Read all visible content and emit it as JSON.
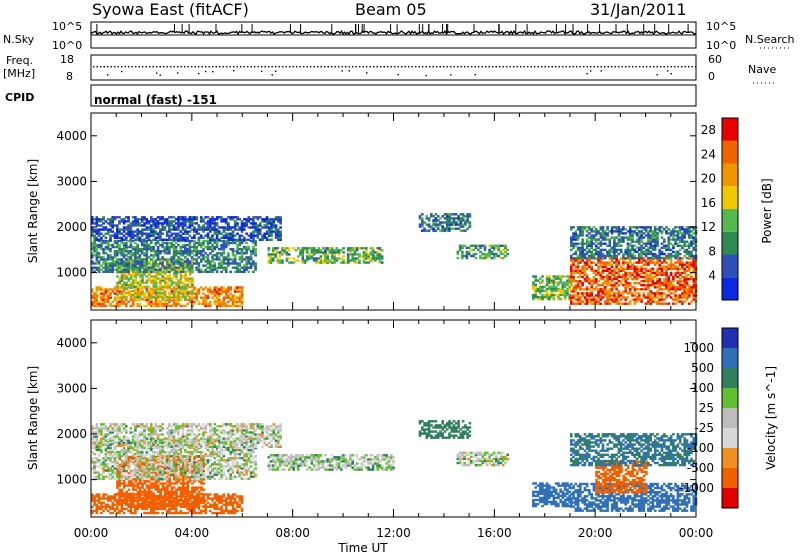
{
  "header": {
    "station": "Syowa East (fitACF)",
    "beam": "Beam 05",
    "date": "31/Jan/2011"
  },
  "status_panels": {
    "nsky_label": "N.Sky",
    "nsky_top": "10^5",
    "nsky_bottom": "10^0",
    "nsearch_label": "N.Search",
    "nsearch_top": "10^5",
    "nsearch_bottom": "10^0",
    "freq_label_1": "Freq.",
    "freq_label_2": "[MHz]",
    "freq_top": "18",
    "freq_bottom": "8",
    "nave_label": "Nave",
    "nave_top": "60",
    "nave_bottom": "0",
    "cpid_label": "CPID",
    "cpid_value": "normal (fast) -151"
  },
  "colors": {
    "power": [
      "#0c28e0",
      "#2e50b8",
      "#2e8c50",
      "#55b850",
      "#f0c800",
      "#f09600",
      "#f06400",
      "#e60000"
    ],
    "velocity": [
      "#2030b0",
      "#3070b8",
      "#308060",
      "#60c030",
      "#bdbdbd",
      "#d8d8d8",
      "#f09020",
      "#f06000",
      "#e00000"
    ]
  },
  "chart_data": [
    {
      "type": "heatmap",
      "title": "Power",
      "xlabel": "Time UT",
      "ylabel": "Slant Range [km]",
      "xlim": [
        "00:00",
        "00:00"
      ],
      "x_ticks": [
        "00:00",
        "04:00",
        "08:00",
        "12:00",
        "16:00",
        "20:00",
        "00:00"
      ],
      "ylim": [
        180,
        4500
      ],
      "y_ticks": [
        1000,
        2000,
        3000,
        4000
      ],
      "colorbar": {
        "label": "Power [dB]",
        "ticks": [
          4,
          8,
          12,
          16,
          20,
          24,
          28
        ],
        "range": [
          0,
          30
        ]
      },
      "regions": [
        {
          "t0": 0.0,
          "t1": 6.0,
          "r0": 250,
          "r1": 700,
          "value": 22
        },
        {
          "t0": 1.0,
          "t1": 4.0,
          "r0": 400,
          "r1": 1300,
          "value": 16
        },
        {
          "t0": 0.0,
          "t1": 6.5,
          "r0": 1000,
          "r1": 1700,
          "value": 9
        },
        {
          "t0": 0.0,
          "t1": 7.5,
          "r0": 1700,
          "r1": 2200,
          "value": 5
        },
        {
          "t0": 7.0,
          "t1": 11.5,
          "r0": 1200,
          "r1": 1550,
          "value": 12
        },
        {
          "t0": 14.5,
          "t1": 16.5,
          "r0": 1300,
          "r1": 1600,
          "value": 11
        },
        {
          "t0": 13.0,
          "t1": 15.0,
          "r0": 1900,
          "r1": 2300,
          "value": 8
        },
        {
          "t0": 17.5,
          "t1": 19.0,
          "r0": 400,
          "r1": 900,
          "value": 13
        },
        {
          "t0": 19.0,
          "t1": 24.0,
          "r0": 300,
          "r1": 1300,
          "value": 24
        },
        {
          "t0": 19.0,
          "t1": 24.0,
          "r0": 1300,
          "r1": 2000,
          "value": 8
        }
      ]
    },
    {
      "type": "heatmap",
      "title": "Velocity",
      "xlabel": "Time UT",
      "ylabel": "Slant Range [km]",
      "xlim": [
        "00:00",
        "00:00"
      ],
      "x_ticks": [
        "00:00",
        "04:00",
        "08:00",
        "12:00",
        "16:00",
        "20:00",
        "00:00"
      ],
      "ylim": [
        180,
        4500
      ],
      "y_ticks": [
        1000,
        2000,
        3000,
        4000
      ],
      "colorbar": {
        "label": "Velocity [m s^-1]",
        "ticks": [
          "1000",
          "500",
          "100",
          "25",
          "-25",
          "-100",
          "-500",
          "-1000"
        ]
      },
      "regions": [
        {
          "t0": 0.0,
          "t1": 6.0,
          "r0": 250,
          "r1": 700,
          "value": -150
        },
        {
          "t0": 1.0,
          "t1": 4.5,
          "r0": 400,
          "r1": 1500,
          "value": -200
        },
        {
          "t0": 0.0,
          "t1": 6.5,
          "r0": 1000,
          "r1": 1900,
          "value": 0
        },
        {
          "t0": 0.0,
          "t1": 7.5,
          "r0": 1700,
          "r1": 2200,
          "value": 0
        },
        {
          "t0": 7.0,
          "t1": 12.0,
          "r0": 1200,
          "r1": 1550,
          "value": 5
        },
        {
          "t0": 14.5,
          "t1": 16.5,
          "r0": 1300,
          "r1": 1600,
          "value": 0
        },
        {
          "t0": 13.0,
          "t1": 15.0,
          "r0": 1900,
          "r1": 2300,
          "value": 60
        },
        {
          "t0": 17.5,
          "t1": 19.0,
          "r0": 400,
          "r1": 900,
          "value": 200
        },
        {
          "t0": 19.0,
          "t1": 24.0,
          "r0": 300,
          "r1": 900,
          "value": 300
        },
        {
          "t0": 20.0,
          "t1": 22.0,
          "r0": 700,
          "r1": 1400,
          "value": -300
        },
        {
          "t0": 19.0,
          "t1": 24.0,
          "r0": 1300,
          "r1": 2000,
          "value": 100
        }
      ]
    }
  ]
}
